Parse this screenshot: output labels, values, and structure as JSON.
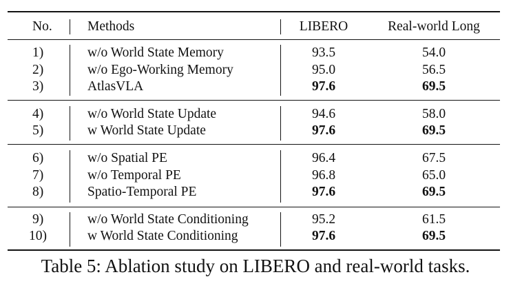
{
  "table": {
    "headers": {
      "no": "No.",
      "method": "Methods",
      "libero": "LIBERO",
      "real": "Real-world Long"
    },
    "rows": [
      {
        "no": "1)",
        "method": "w/o World State Memory",
        "libero": "93.5",
        "real": "54.0",
        "bold": false
      },
      {
        "no": "2)",
        "method": "w/o Ego-Working Memory",
        "libero": "95.0",
        "real": "56.5",
        "bold": false
      },
      {
        "no": "3)",
        "method": "AtlasVLA",
        "libero": "97.6",
        "real": "69.5",
        "bold": true
      },
      {
        "no": "4)",
        "method": "w/o World State Update",
        "libero": "94.6",
        "real": "58.0",
        "bold": false
      },
      {
        "no": "5)",
        "method": "w World State Update",
        "libero": "97.6",
        "real": "69.5",
        "bold": true
      },
      {
        "no": "6)",
        "method": "w/o Spatial PE",
        "libero": "96.4",
        "real": "67.5",
        "bold": false
      },
      {
        "no": "7)",
        "method": "w/o Temporal PE",
        "libero": "96.8",
        "real": "65.0",
        "bold": false
      },
      {
        "no": "8)",
        "method": "Spatio-Temporal PE",
        "libero": "97.6",
        "real": "69.5",
        "bold": true
      },
      {
        "no": "9)",
        "method": "w/o World State Conditioning",
        "libero": "95.2",
        "real": "61.5",
        "bold": false
      },
      {
        "no": "10)",
        "method": "w World State Conditioning",
        "libero": "97.6",
        "real": "69.5",
        "bold": true
      }
    ]
  },
  "caption": "Table 5: Ablation study on LIBERO and real-world tasks."
}
